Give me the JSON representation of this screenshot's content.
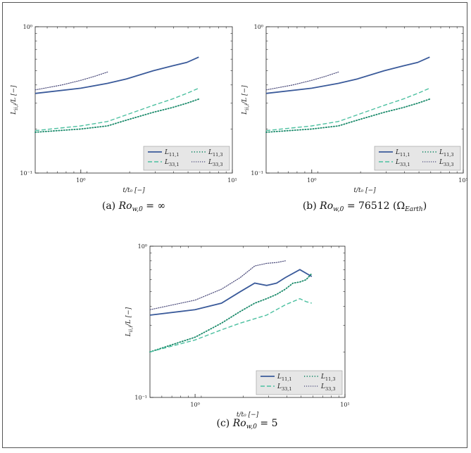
{
  "colors": {
    "L11_1": "#3a5a9a",
    "L33_1": "#4cc0a0",
    "L11_3": "#1a8a6a",
    "L33_3": "#4a4a7a"
  },
  "chart_data": [
    {
      "type": "line",
      "panel": "(a)",
      "caption_prefix": "(a) ",
      "caption_math": "Ro",
      "caption_sub": "w,0",
      "caption_suffix": " = ∞",
      "xlabel": "t/t₀  [−]",
      "ylabel": "L_{ii,i}/L [−]",
      "xscale": "log",
      "yscale": "log",
      "xlim": [
        0.5,
        10
      ],
      "ylim": [
        0.1,
        1
      ],
      "x_ticks": [
        "10⁰",
        "10¹"
      ],
      "y_ticks": [
        "10⁰",
        "10⁻¹"
      ],
      "legend": {
        "placement": "bottom-right",
        "entries": [
          "L11,1",
          "L11,3",
          "L33,1",
          "L33,3"
        ]
      },
      "series": [
        {
          "name": "L11,1",
          "style": "solid",
          "x": [
            0.5,
            1.0,
            1.5,
            2.0,
            3.0,
            4.0,
            5.0,
            6.0
          ],
          "y": [
            0.35,
            0.38,
            0.41,
            0.44,
            0.5,
            0.54,
            0.57,
            0.62
          ]
        },
        {
          "name": "L11,3",
          "style": "dashdot",
          "x": [
            0.5,
            1.0,
            1.5,
            2.0,
            3.0,
            4.0,
            5.0,
            6.0
          ],
          "y": [
            0.19,
            0.2,
            0.21,
            0.23,
            0.26,
            0.28,
            0.3,
            0.32
          ]
        },
        {
          "name": "L33,1",
          "style": "dashed",
          "x": [
            0.5,
            1.0,
            1.5,
            2.0,
            3.0,
            4.0,
            5.0,
            6.0
          ],
          "y": [
            0.195,
            0.21,
            0.225,
            0.25,
            0.29,
            0.32,
            0.35,
            0.38
          ]
        },
        {
          "name": "L33,3",
          "style": "dotted",
          "x": [
            0.5,
            0.75,
            1.0,
            1.25,
            1.5
          ],
          "y": [
            0.37,
            0.4,
            0.43,
            0.46,
            0.49
          ]
        }
      ]
    },
    {
      "type": "line",
      "panel": "(b)",
      "caption_prefix": "(b) ",
      "caption_math": "Ro",
      "caption_sub": "w,0",
      "caption_suffix": " = 76512 (Ω",
      "caption_sub2": "Earth",
      "caption_end": ")",
      "xlabel": "t/t₀  [−]",
      "ylabel": "L_{ii,i}/L [−]",
      "xscale": "log",
      "yscale": "log",
      "xlim": [
        0.5,
        10
      ],
      "ylim": [
        0.1,
        1
      ],
      "x_ticks": [
        "10⁰",
        "10¹"
      ],
      "y_ticks": [
        "10⁰",
        "10⁻¹"
      ],
      "legend": {
        "placement": "bottom-right",
        "entries": [
          "L11,1",
          "L11,3",
          "L33,1",
          "L33,3"
        ]
      },
      "series": [
        {
          "name": "L11,1",
          "style": "solid",
          "x": [
            0.5,
            1.0,
            1.5,
            2.0,
            3.0,
            4.0,
            5.0,
            6.0
          ],
          "y": [
            0.35,
            0.38,
            0.41,
            0.44,
            0.5,
            0.54,
            0.57,
            0.62
          ]
        },
        {
          "name": "L11,3",
          "style": "dashdot",
          "x": [
            0.5,
            1.0,
            1.5,
            2.0,
            3.0,
            4.0,
            5.0,
            6.0
          ],
          "y": [
            0.19,
            0.2,
            0.21,
            0.23,
            0.26,
            0.28,
            0.3,
            0.32
          ]
        },
        {
          "name": "L33,1",
          "style": "dashed",
          "x": [
            0.5,
            1.0,
            1.5,
            2.0,
            3.0,
            4.0,
            5.0,
            6.0
          ],
          "y": [
            0.195,
            0.21,
            0.225,
            0.25,
            0.29,
            0.32,
            0.35,
            0.38
          ]
        },
        {
          "name": "L33,3",
          "style": "dotted",
          "x": [
            0.5,
            0.75,
            1.0,
            1.25,
            1.5
          ],
          "y": [
            0.37,
            0.4,
            0.43,
            0.46,
            0.49
          ]
        }
      ]
    },
    {
      "type": "line",
      "panel": "(c)",
      "caption_prefix": "(c) ",
      "caption_math": "Ro",
      "caption_sub": "w,0",
      "caption_suffix": " = 5",
      "xlabel": "t/t₀  [−]",
      "ylabel": "L_{ii,i}/L [−]",
      "xscale": "log",
      "yscale": "log",
      "xlim": [
        0.5,
        10
      ],
      "ylim": [
        0.1,
        1
      ],
      "x_ticks": [
        "10⁰",
        "10¹"
      ],
      "y_ticks": [
        "10⁰",
        "10⁻¹"
      ],
      "legend": {
        "placement": "bottom-right",
        "entries": [
          "L11,1",
          "L11,3",
          "L33,1",
          "L33,3"
        ]
      },
      "series": [
        {
          "name": "L11,1",
          "style": "solid",
          "x": [
            0.5,
            1.0,
            1.5,
            2.0,
            2.5,
            3.0,
            3.5,
            4.0,
            5.0,
            6.0
          ],
          "y": [
            0.35,
            0.38,
            0.42,
            0.5,
            0.57,
            0.55,
            0.57,
            0.62,
            0.7,
            0.63
          ]
        },
        {
          "name": "L11,3",
          "style": "dashdot",
          "x": [
            0.5,
            1.0,
            1.5,
            2.0,
            2.5,
            3.0,
            3.5,
            4.0,
            4.5,
            5.0,
            5.5,
            6.0
          ],
          "y": [
            0.2,
            0.25,
            0.31,
            0.37,
            0.42,
            0.45,
            0.48,
            0.52,
            0.57,
            0.58,
            0.6,
            0.66
          ]
        },
        {
          "name": "L33,1",
          "style": "dashed",
          "x": [
            0.5,
            1.0,
            1.5,
            2.0,
            3.0,
            4.0,
            5.0,
            5.5,
            6.0
          ],
          "y": [
            0.2,
            0.24,
            0.28,
            0.31,
            0.35,
            0.41,
            0.45,
            0.43,
            0.42
          ]
        },
        {
          "name": "L33,3",
          "style": "dotted",
          "x": [
            0.5,
            1.0,
            1.5,
            2.0,
            2.5,
            3.0,
            3.5,
            4.0
          ],
          "y": [
            0.38,
            0.44,
            0.52,
            0.62,
            0.74,
            0.77,
            0.78,
            0.8
          ]
        }
      ]
    }
  ]
}
